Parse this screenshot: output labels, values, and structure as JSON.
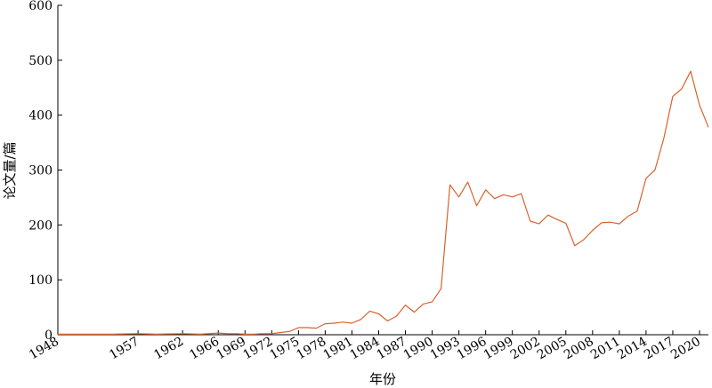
{
  "chart_data": {
    "type": "line",
    "xlabel": "年份",
    "ylabel": "论文量/篇",
    "ylim": [
      0,
      600
    ],
    "yticks": [
      0,
      100,
      200,
      300,
      400,
      500,
      600
    ],
    "xlim": [
      1948,
      2020
    ],
    "xticks": [
      1948,
      1957,
      1962,
      1966,
      1969,
      1972,
      1975,
      1978,
      1981,
      1984,
      1987,
      1990,
      1993,
      1996,
      1999,
      2002,
      2005,
      2008,
      2011,
      2014,
      2017,
      2020
    ],
    "grid": false,
    "legend": "none",
    "line_color": "#d9622b",
    "series": [
      {
        "points": [
          [
            1948,
            1
          ],
          [
            1950,
            1
          ],
          [
            1952,
            1
          ],
          [
            1954,
            1
          ],
          [
            1957,
            2
          ],
          [
            1959,
            1
          ],
          [
            1962,
            2
          ],
          [
            1964,
            1
          ],
          [
            1966,
            3
          ],
          [
            1967,
            2
          ],
          [
            1968,
            2
          ],
          [
            1969,
            1
          ],
          [
            1970,
            1
          ],
          [
            1971,
            2
          ],
          [
            1972,
            2
          ],
          [
            1973,
            4
          ],
          [
            1974,
            6
          ],
          [
            1975,
            13
          ],
          [
            1976,
            13
          ],
          [
            1977,
            12
          ],
          [
            1978,
            20
          ],
          [
            1979,
            21
          ],
          [
            1980,
            23
          ],
          [
            1981,
            21
          ],
          [
            1982,
            28
          ],
          [
            1983,
            43
          ],
          [
            1984,
            38
          ],
          [
            1985,
            25
          ],
          [
            1986,
            34
          ],
          [
            1987,
            54
          ],
          [
            1988,
            41
          ],
          [
            1989,
            56
          ],
          [
            1990,
            60
          ],
          [
            1991,
            84
          ],
          [
            1992,
            273
          ],
          [
            1993,
            251
          ],
          [
            1994,
            278
          ],
          [
            1995,
            235
          ],
          [
            1996,
            264
          ],
          [
            1997,
            248
          ],
          [
            1998,
            255
          ],
          [
            1999,
            251
          ],
          [
            2000,
            257
          ],
          [
            2001,
            207
          ],
          [
            2002,
            202
          ],
          [
            2003,
            218
          ],
          [
            2004,
            210
          ],
          [
            2005,
            203
          ],
          [
            2006,
            162
          ],
          [
            2007,
            173
          ],
          [
            2008,
            190
          ],
          [
            2009,
            204
          ],
          [
            2010,
            205
          ],
          [
            2011,
            202
          ],
          [
            2012,
            216
          ],
          [
            2013,
            225
          ],
          [
            2014,
            285
          ],
          [
            2015,
            300
          ],
          [
            2016,
            358
          ],
          [
            2017,
            434
          ],
          [
            2018,
            448
          ],
          [
            2019,
            480
          ],
          [
            2020,
            418
          ],
          [
            2021,
            378
          ]
        ]
      }
    ]
  }
}
